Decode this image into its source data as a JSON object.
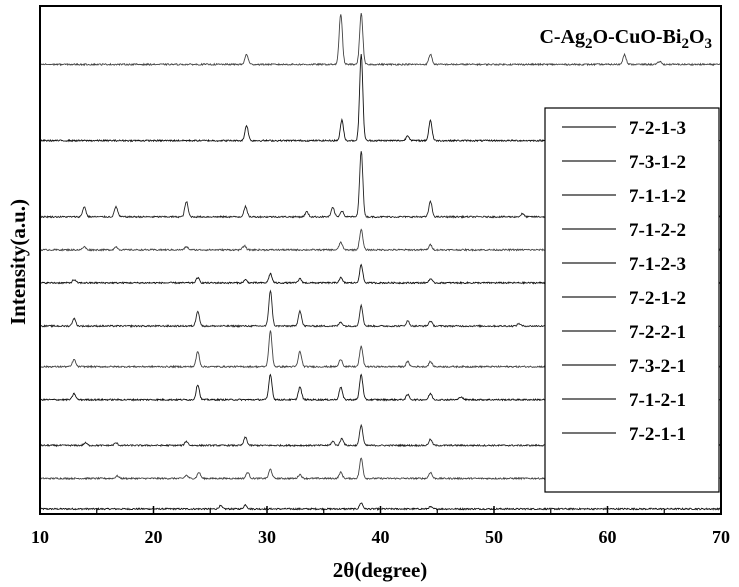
{
  "chart_data": {
    "type": "line",
    "title": "",
    "annotation": {
      "prefix": "C-Ag",
      "s1": "2",
      "mid1": "O-CuO-Bi",
      "s2": "2",
      "mid2": "O",
      "s3": "3"
    },
    "xlabel": "2θ(degree)",
    "ylabel": "Intensity(a.u.)",
    "xlim": [
      10,
      70
    ],
    "x_ticks": [
      10,
      20,
      30,
      40,
      50,
      60,
      70
    ],
    "x_tick_labels": [
      "10",
      "20",
      "30",
      "40",
      "50",
      "60",
      "70"
    ],
    "grid": false,
    "legend_position": "right",
    "series": [
      {
        "name": "7-2-1-1",
        "baseline": 0.01,
        "peaks": [
          [
            25.9,
            0.006
          ],
          [
            28.1,
            0.008
          ],
          [
            38.3,
            0.012
          ],
          [
            44.4,
            0.004
          ]
        ]
      },
      {
        "name": "7-1-2-1",
        "baseline": 0.07,
        "peaks": [
          [
            16.8,
            0.005
          ],
          [
            22.9,
            0.006
          ],
          [
            24.0,
            0.012
          ],
          [
            28.3,
            0.012
          ],
          [
            30.3,
            0.018
          ],
          [
            32.9,
            0.008
          ],
          [
            36.5,
            0.012
          ],
          [
            38.3,
            0.04
          ],
          [
            44.4,
            0.012
          ]
        ]
      },
      {
        "name": "7-3-2-1",
        "baseline": 0.135,
        "peaks": [
          [
            14.0,
            0.005
          ],
          [
            16.7,
            0.005
          ],
          [
            22.9,
            0.008
          ],
          [
            28.1,
            0.016
          ],
          [
            35.8,
            0.008
          ],
          [
            36.6,
            0.014
          ],
          [
            38.3,
            0.04
          ],
          [
            44.4,
            0.012
          ]
        ]
      },
      {
        "name": "7-2-2-1",
        "baseline": 0.225,
        "peaks": [
          [
            13.0,
            0.012
          ],
          [
            23.9,
            0.03
          ],
          [
            30.3,
            0.05
          ],
          [
            32.9,
            0.025
          ],
          [
            36.5,
            0.025
          ],
          [
            38.3,
            0.05
          ],
          [
            42.4,
            0.01
          ],
          [
            44.4,
            0.012
          ],
          [
            47.1,
            0.006
          ]
        ]
      },
      {
        "name": "7-2-1-2",
        "baseline": 0.29,
        "peaks": [
          [
            13.0,
            0.014
          ],
          [
            23.9,
            0.03
          ],
          [
            30.3,
            0.07
          ],
          [
            32.9,
            0.03
          ],
          [
            36.5,
            0.015
          ],
          [
            38.3,
            0.04
          ],
          [
            42.4,
            0.01
          ],
          [
            44.4,
            0.01
          ]
        ]
      },
      {
        "name": "7-1-2-3",
        "baseline": 0.37,
        "peaks": [
          [
            13.0,
            0.015
          ],
          [
            23.9,
            0.03
          ],
          [
            30.3,
            0.07
          ],
          [
            32.9,
            0.03
          ],
          [
            36.5,
            0.008
          ],
          [
            38.3,
            0.04
          ],
          [
            42.4,
            0.01
          ],
          [
            44.4,
            0.01
          ],
          [
            52.2,
            0.005
          ]
        ]
      },
      {
        "name": "7-1-2-2",
        "baseline": 0.455,
        "peaks": [
          [
            13.0,
            0.006
          ],
          [
            23.9,
            0.01
          ],
          [
            28.1,
            0.006
          ],
          [
            30.3,
            0.018
          ],
          [
            32.9,
            0.008
          ],
          [
            36.5,
            0.01
          ],
          [
            38.3,
            0.035
          ],
          [
            44.4,
            0.008
          ]
        ]
      },
      {
        "name": "7-1-1-2",
        "baseline": 0.52,
        "peaks": [
          [
            13.9,
            0.006
          ],
          [
            16.7,
            0.006
          ],
          [
            22.9,
            0.006
          ],
          [
            28.0,
            0.008
          ],
          [
            36.5,
            0.015
          ],
          [
            38.3,
            0.04
          ],
          [
            44.4,
            0.01
          ]
        ]
      },
      {
        "name": "7-3-1-2",
        "baseline": 0.585,
        "peaks": [
          [
            13.9,
            0.02
          ],
          [
            16.7,
            0.02
          ],
          [
            22.9,
            0.03
          ],
          [
            28.1,
            0.02
          ],
          [
            33.5,
            0.01
          ],
          [
            35.8,
            0.018
          ],
          [
            36.6,
            0.012
          ],
          [
            38.3,
            0.13
          ],
          [
            44.4,
            0.03
          ],
          [
            52.5,
            0.006
          ]
        ]
      },
      {
        "name": "7-2-1-3",
        "baseline": 0.735,
        "peaks": [
          [
            28.2,
            0.03
          ],
          [
            36.6,
            0.04
          ],
          [
            38.3,
            0.17
          ],
          [
            42.4,
            0.01
          ],
          [
            44.4,
            0.04
          ]
        ]
      },
      {
        "name": "",
        "baseline": 0.885,
        "peaks": [
          [
            28.2,
            0.02
          ],
          [
            36.5,
            0.1
          ],
          [
            38.3,
            0.1
          ],
          [
            44.4,
            0.02
          ],
          [
            61.5,
            0.02
          ],
          [
            64.6,
            0.006
          ]
        ]
      }
    ]
  }
}
